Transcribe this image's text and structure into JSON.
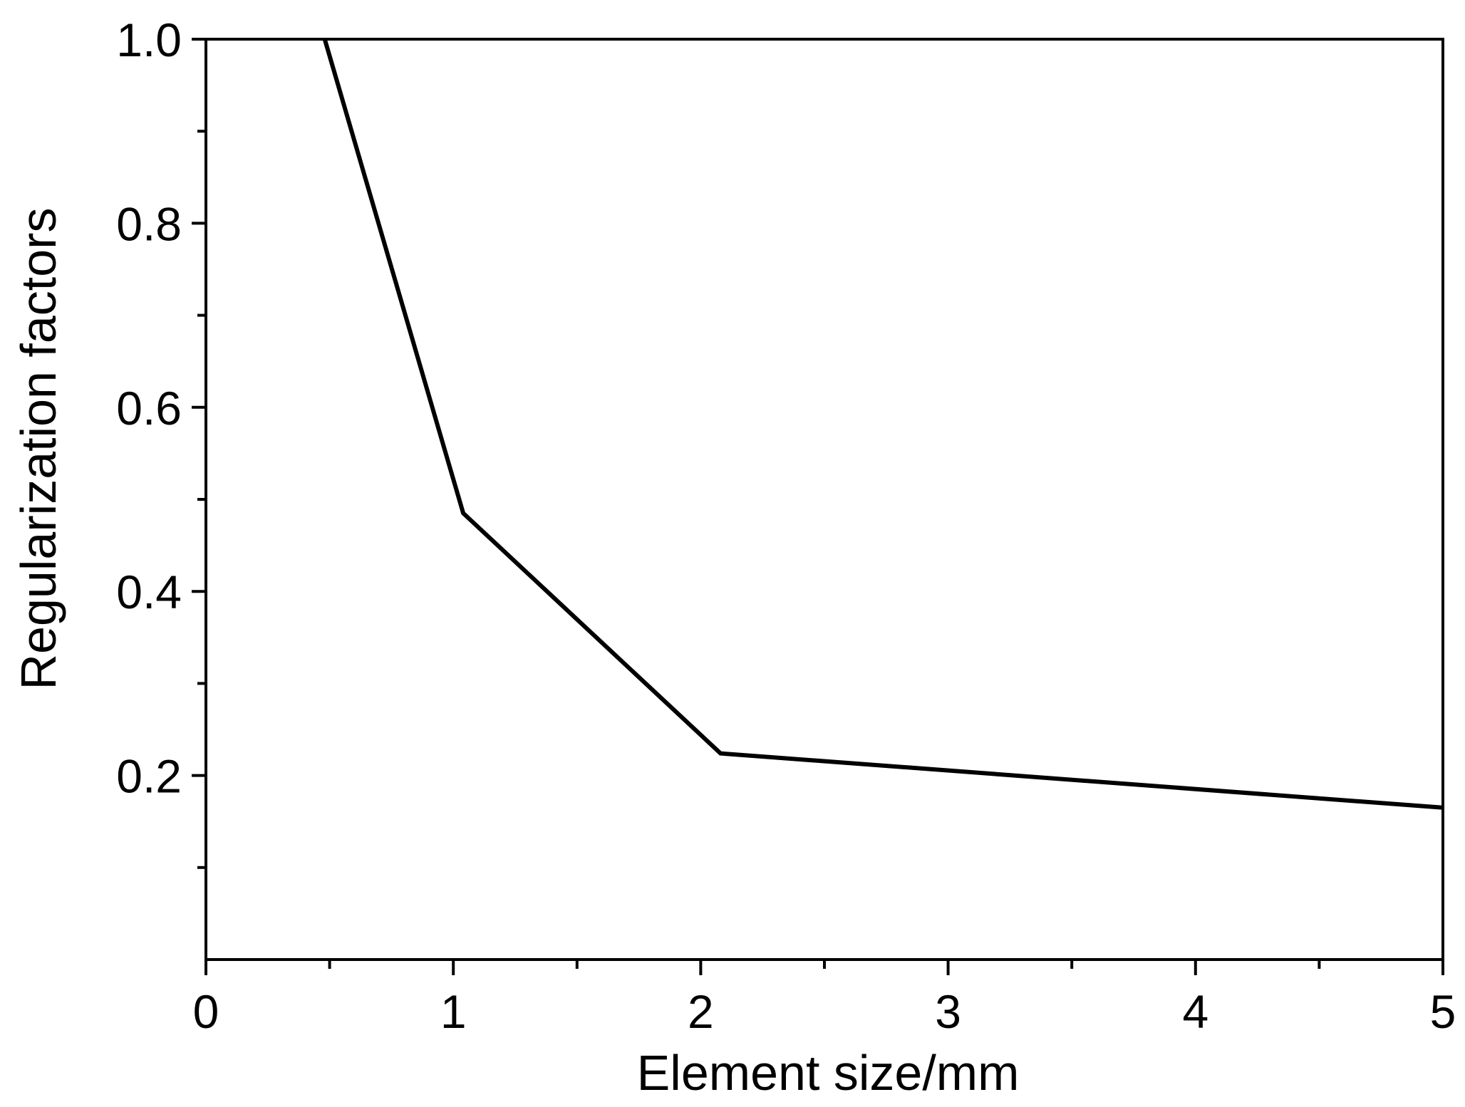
{
  "chart_data": {
    "type": "line",
    "title": "",
    "xlabel": "Element size/mm",
    "ylabel": "Regularization factors",
    "xlim": [
      0,
      5
    ],
    "ylim": [
      0,
      1.0
    ],
    "x_ticks": [
      0,
      1,
      2,
      3,
      4,
      5
    ],
    "x_tick_labels": [
      "0",
      "1",
      "2",
      "3",
      "4",
      "5"
    ],
    "x_minor_ticks": [
      0.5,
      1.5,
      2.5,
      3.5,
      4.5
    ],
    "y_ticks": [
      0.2,
      0.4,
      0.6,
      0.8,
      1.0
    ],
    "y_tick_labels": [
      "0.2",
      "0.4",
      "0.6",
      "0.8",
      "1.0"
    ],
    "y_minor_ticks": [
      0.1,
      0.3,
      0.5,
      0.7,
      0.9
    ],
    "grid": false,
    "legend": "none",
    "line_color": "#000000",
    "series": [
      {
        "x": [
          0.48,
          1.04,
          2.08,
          5.0
        ],
        "y": [
          1.0,
          0.485,
          0.224,
          0.165
        ]
      }
    ]
  }
}
